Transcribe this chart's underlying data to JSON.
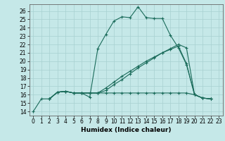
{
  "xlabel": "Humidex (Indice chaleur)",
  "bg_color": "#c5e8e8",
  "grid_color": "#a8d0d0",
  "line_color": "#1a6b5a",
  "xlim": [
    -0.5,
    23.5
  ],
  "ylim": [
    13.5,
    26.8
  ],
  "xticks": [
    0,
    1,
    2,
    3,
    4,
    5,
    6,
    7,
    8,
    9,
    10,
    11,
    12,
    13,
    14,
    15,
    16,
    17,
    18,
    19,
    20,
    21,
    22,
    23
  ],
  "yticks": [
    14,
    15,
    16,
    17,
    18,
    19,
    20,
    21,
    22,
    23,
    24,
    25,
    26
  ],
  "line1_x": [
    0,
    1,
    2,
    3,
    4,
    5,
    6,
    7,
    8,
    9,
    10,
    11,
    12,
    13,
    14,
    15,
    16,
    17,
    18,
    19,
    20,
    21,
    22
  ],
  "line1_y": [
    14,
    15.5,
    15.5,
    16.3,
    16.4,
    16.2,
    16.2,
    15.7,
    21.5,
    23.2,
    24.8,
    25.3,
    25.2,
    26.5,
    25.2,
    25.1,
    25.1,
    23.1,
    21.6,
    19.6,
    16.0,
    15.6,
    15.5
  ],
  "line2_x": [
    2,
    3,
    4,
    5,
    6,
    7,
    8,
    9,
    10,
    11,
    12,
    13,
    14,
    15,
    16,
    17,
    18,
    19,
    20,
    21,
    22
  ],
  "line2_y": [
    15.5,
    16.3,
    16.4,
    16.2,
    16.2,
    16.2,
    16.2,
    16.5,
    17.2,
    17.8,
    18.5,
    19.2,
    19.8,
    20.4,
    21.0,
    21.5,
    22.0,
    21.6,
    16.0,
    15.6,
    15.5
  ],
  "line3_x": [
    2,
    3,
    4,
    5,
    6,
    7,
    8,
    9,
    10,
    11,
    12,
    13,
    14,
    15,
    16,
    17,
    18,
    19,
    20,
    21,
    22
  ],
  "line3_y": [
    15.5,
    16.3,
    16.4,
    16.2,
    16.2,
    16.2,
    16.2,
    16.8,
    17.5,
    18.2,
    18.8,
    19.4,
    20.0,
    20.5,
    21.0,
    21.4,
    21.8,
    19.7,
    16.0,
    15.6,
    15.5
  ],
  "line4_x": [
    2,
    3,
    4,
    5,
    6,
    7,
    8,
    9,
    10,
    11,
    12,
    13,
    14,
    15,
    16,
    17,
    18,
    19,
    20,
    21,
    22
  ],
  "line4_y": [
    15.5,
    16.3,
    16.4,
    16.2,
    16.2,
    16.2,
    16.2,
    16.2,
    16.2,
    16.2,
    16.2,
    16.2,
    16.2,
    16.2,
    16.2,
    16.2,
    16.2,
    16.2,
    16.0,
    15.6,
    15.5
  ],
  "xlabel_fontsize": 6.5,
  "tick_fontsize": 5.5
}
